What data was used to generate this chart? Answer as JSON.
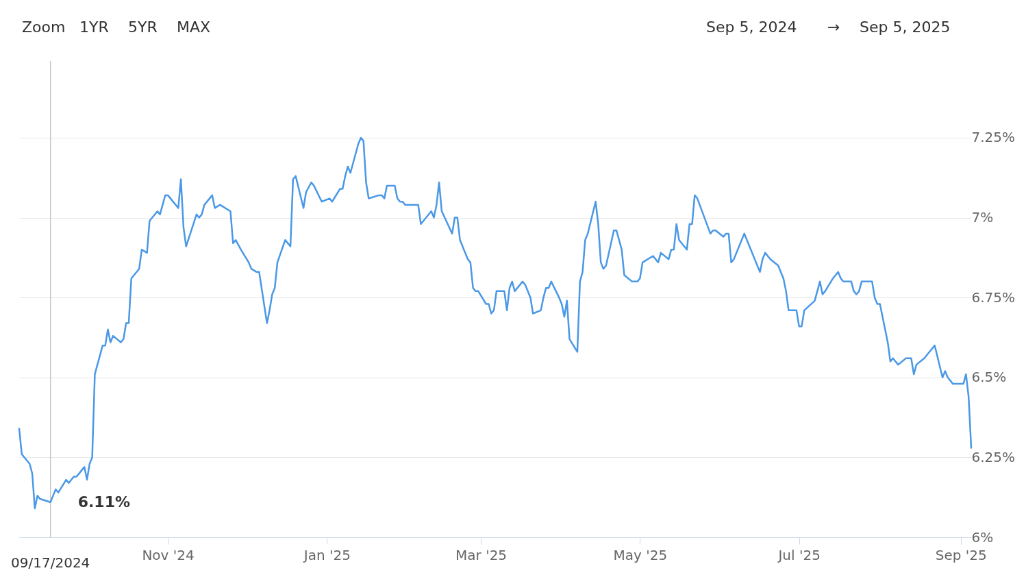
{
  "chart_data": {
    "type": "line",
    "x": [
      "2024-09-05",
      "2024-09-06",
      "2024-09-09",
      "2024-09-10",
      "2024-09-11",
      "2024-09-12",
      "2024-09-13",
      "2024-09-17",
      "2024-09-18",
      "2024-09-19",
      "2024-09-20",
      "2024-09-23",
      "2024-09-24",
      "2024-09-25",
      "2024-09-26",
      "2024-09-27",
      "2024-09-30",
      "2024-10-01",
      "2024-10-02",
      "2024-10-03",
      "2024-10-04",
      "2024-10-07",
      "2024-10-08",
      "2024-10-09",
      "2024-10-10",
      "2024-10-11",
      "2024-10-14",
      "2024-10-15",
      "2024-10-16",
      "2024-10-17",
      "2024-10-18",
      "2024-10-21",
      "2024-10-22",
      "2024-10-24",
      "2024-10-25",
      "2024-10-28",
      "2024-10-29",
      "2024-10-31",
      "2024-11-01",
      "2024-11-04",
      "2024-11-05",
      "2024-11-06",
      "2024-11-07",
      "2024-11-08",
      "2024-11-12",
      "2024-11-13",
      "2024-11-14",
      "2024-11-15",
      "2024-11-18",
      "2024-11-19",
      "2024-11-21",
      "2024-11-25",
      "2024-11-26",
      "2024-11-27",
      "2024-11-29",
      "2024-12-02",
      "2024-12-03",
      "2024-12-05",
      "2024-12-06",
      "2024-12-09",
      "2024-12-10",
      "2024-12-11",
      "2024-12-12",
      "2024-12-13",
      "2024-12-16",
      "2024-12-17",
      "2024-12-18",
      "2024-12-19",
      "2024-12-20",
      "2024-12-23",
      "2024-12-24",
      "2024-12-26",
      "2024-12-27",
      "2024-12-30",
      "2025-01-02",
      "2025-01-03",
      "2025-01-06",
      "2025-01-07",
      "2025-01-08",
      "2025-01-09",
      "2025-01-10",
      "2025-01-13",
      "2025-01-14",
      "2025-01-15",
      "2025-01-16",
      "2025-01-17",
      "2025-01-21",
      "2025-01-22",
      "2025-01-23",
      "2025-01-24",
      "2025-01-27",
      "2025-01-28",
      "2025-01-29",
      "2025-01-30",
      "2025-01-31",
      "2025-02-05",
      "2025-02-06",
      "2025-02-07",
      "2025-02-10",
      "2025-02-11",
      "2025-02-12",
      "2025-02-13",
      "2025-02-14",
      "2025-02-18",
      "2025-02-19",
      "2025-02-20",
      "2025-02-21",
      "2025-02-24",
      "2025-02-25",
      "2025-02-26",
      "2025-02-27",
      "2025-02-28",
      "2025-03-03",
      "2025-03-04",
      "2025-03-05",
      "2025-03-06",
      "2025-03-07",
      "2025-03-10",
      "2025-03-11",
      "2025-03-12",
      "2025-03-13",
      "2025-03-14",
      "2025-03-17",
      "2025-03-18",
      "2025-03-19",
      "2025-03-20",
      "2025-03-21",
      "2025-03-24",
      "2025-03-25",
      "2025-03-26",
      "2025-03-27",
      "2025-03-28",
      "2025-03-31",
      "2025-04-01",
      "2025-04-02",
      "2025-04-03",
      "2025-04-04",
      "2025-04-07",
      "2025-04-08",
      "2025-04-09",
      "2025-04-10",
      "2025-04-11",
      "2025-04-14",
      "2025-04-15",
      "2025-04-16",
      "2025-04-17",
      "2025-04-18",
      "2025-04-21",
      "2025-04-22",
      "2025-04-23",
      "2025-04-24",
      "2025-04-25",
      "2025-04-28",
      "2025-04-29",
      "2025-04-30",
      "2025-05-01",
      "2025-05-02",
      "2025-05-06",
      "2025-05-08",
      "2025-05-09",
      "2025-05-12",
      "2025-05-13",
      "2025-05-14",
      "2025-05-15",
      "2025-05-16",
      "2025-05-19",
      "2025-05-20",
      "2025-05-21",
      "2025-05-22",
      "2025-05-23",
      "2025-05-28",
      "2025-05-29",
      "2025-05-30",
      "2025-06-02",
      "2025-06-03",
      "2025-06-04",
      "2025-06-05",
      "2025-06-06",
      "2025-06-10",
      "2025-06-12",
      "2025-06-16",
      "2025-06-17",
      "2025-06-18",
      "2025-06-20",
      "2025-06-23",
      "2025-06-25",
      "2025-06-26",
      "2025-06-27",
      "2025-06-30",
      "2025-07-01",
      "2025-07-02",
      "2025-07-03",
      "2025-07-07",
      "2025-07-08",
      "2025-07-09",
      "2025-07-10",
      "2025-07-11",
      "2025-07-14",
      "2025-07-15",
      "2025-07-16",
      "2025-07-17",
      "2025-07-18",
      "2025-07-21",
      "2025-07-22",
      "2025-07-23",
      "2025-07-24",
      "2025-07-25",
      "2025-07-29",
      "2025-07-30",
      "2025-07-31",
      "2025-08-01",
      "2025-08-04",
      "2025-08-05",
      "2025-08-06",
      "2025-08-07",
      "2025-08-08",
      "2025-08-11",
      "2025-08-12",
      "2025-08-13",
      "2025-08-14",
      "2025-08-15",
      "2025-08-18",
      "2025-08-22",
      "2025-08-25",
      "2025-08-26",
      "2025-08-27",
      "2025-08-29",
      "2025-09-02",
      "2025-09-03",
      "2025-09-04",
      "2025-09-05"
    ],
    "series": [
      {
        "color": "#4a98e6",
        "values": [
          6.34,
          6.26,
          6.23,
          6.2,
          6.09,
          6.13,
          6.12,
          6.11,
          6.13,
          6.15,
          6.14,
          6.18,
          6.17,
          6.18,
          6.19,
          6.19,
          6.22,
          6.18,
          6.23,
          6.25,
          6.51,
          6.6,
          6.6,
          6.65,
          6.61,
          6.63,
          6.61,
          6.62,
          6.67,
          6.67,
          6.81,
          6.84,
          6.9,
          6.89,
          6.99,
          7.02,
          7.01,
          7.07,
          7.07,
          7.04,
          7.03,
          7.12,
          6.97,
          6.91,
          7.01,
          7.0,
          7.01,
          7.04,
          7.07,
          7.03,
          7.04,
          7.02,
          6.92,
          6.93,
          6.9,
          6.86,
          6.84,
          6.83,
          6.83,
          6.67,
          6.71,
          6.76,
          6.78,
          6.86,
          6.93,
          6.92,
          6.91,
          7.12,
          7.13,
          7.03,
          7.08,
          7.11,
          7.1,
          7.05,
          7.06,
          7.05,
          7.09,
          7.09,
          7.13,
          7.16,
          7.14,
          7.23,
          7.25,
          7.24,
          7.11,
          7.06,
          7.07,
          7.07,
          7.06,
          7.1,
          7.1,
          7.06,
          7.05,
          7.05,
          7.04,
          7.04,
          6.98,
          6.99,
          7.02,
          7.0,
          7.04,
          7.11,
          7.02,
          6.95,
          7.0,
          7.0,
          6.93,
          6.87,
          6.86,
          6.78,
          6.77,
          6.77,
          6.73,
          6.73,
          6.7,
          6.71,
          6.77,
          6.77,
          6.71,
          6.78,
          6.8,
          6.77,
          6.8,
          6.79,
          6.77,
          6.75,
          6.7,
          6.71,
          6.75,
          6.78,
          6.78,
          6.8,
          6.75,
          6.73,
          6.69,
          6.74,
          6.62,
          6.58,
          6.8,
          6.83,
          6.93,
          6.95,
          7.05,
          6.98,
          6.86,
          6.84,
          6.85,
          6.96,
          6.96,
          6.93,
          6.9,
          6.82,
          6.8,
          6.8,
          6.8,
          6.81,
          6.86,
          6.88,
          6.86,
          6.89,
          6.87,
          6.9,
          6.9,
          6.98,
          6.93,
          6.9,
          6.98,
          6.98,
          7.07,
          7.06,
          6.95,
          6.96,
          6.96,
          6.94,
          6.95,
          6.95,
          6.86,
          6.87,
          6.95,
          6.91,
          6.83,
          6.87,
          6.89,
          6.87,
          6.85,
          6.81,
          6.77,
          6.71,
          6.71,
          6.66,
          6.66,
          6.71,
          6.74,
          6.77,
          6.8,
          6.76,
          6.77,
          6.81,
          6.82,
          6.83,
          6.81,
          6.8,
          6.8,
          6.77,
          6.76,
          6.77,
          6.8,
          6.8,
          6.75,
          6.73,
          6.73,
          6.61,
          6.55,
          6.56,
          6.55,
          6.54,
          6.56,
          6.56,
          6.56,
          6.51,
          6.54,
          6.56,
          6.6,
          6.5,
          6.52,
          6.5,
          6.48,
          6.48,
          6.51,
          6.44,
          6.28
        ]
      }
    ],
    "xlim": [
      "2024-09-05",
      "2025-09-05"
    ],
    "xticks": [
      {
        "value": "2024-11-01",
        "label": "Nov '24"
      },
      {
        "value": "2025-01-01",
        "label": "Jan '25"
      },
      {
        "value": "2025-03-01",
        "label": "Mar '25"
      },
      {
        "value": "2025-05-01",
        "label": "May '25"
      },
      {
        "value": "2025-07-01",
        "label": "Jul '25"
      },
      {
        "value": "2025-09-01",
        "label": "Sep '25"
      }
    ],
    "ylim": [
      6,
      7.49
    ],
    "yticks": [
      {
        "value": 6,
        "label": "6%"
      },
      {
        "value": 6.25,
        "label": "6.25%"
      },
      {
        "value": 6.5,
        "label": "6.5%"
      },
      {
        "value": 6.75,
        "label": "6.75%"
      },
      {
        "value": 7,
        "label": "7%"
      },
      {
        "value": 7.25,
        "label": "7.25%"
      }
    ],
    "grid": "y",
    "ref_lines": [
      {
        "axis": "x",
        "value": "2024-09-17",
        "label": "09/17/2024",
        "color": "#c8c8c8"
      }
    ],
    "annotations": [
      {
        "text": "6.11%",
        "x": "2024-09-17",
        "y": 6.11
      },
      "Zoom",
      "1YR",
      "5YR",
      "MAX",
      "Sep 5, 2024",
      "→",
      "Sep 5, 2025"
    ]
  }
}
